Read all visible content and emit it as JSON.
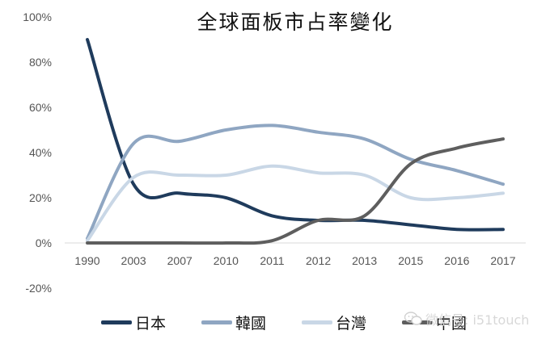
{
  "chart_data": {
    "type": "line",
    "title": "全球面板市占率變化",
    "xlabel": "",
    "ylabel": "",
    "categories": [
      "1990",
      "2003",
      "2007",
      "2010",
      "2011",
      "2012",
      "2013",
      "2015",
      "2016",
      "2017"
    ],
    "y_ticks": [
      "100%",
      "80%",
      "60%",
      "40%",
      "20%",
      "0%",
      "-20%"
    ],
    "ylim": [
      -20,
      100
    ],
    "grid": false,
    "legend_position": "bottom",
    "smooth": true,
    "series": [
      {
        "name": "日本",
        "color": "#1f3b5c",
        "values": [
          90,
          26,
          22,
          20,
          12,
          10,
          10,
          8,
          6,
          6
        ]
      },
      {
        "name": "韓國",
        "color": "#8fa6c2",
        "values": [
          2,
          44,
          45,
          50,
          52,
          49,
          46,
          37,
          32,
          26
        ]
      },
      {
        "name": "台灣",
        "color": "#c9d7e6",
        "values": [
          1,
          29,
          30,
          30,
          34,
          31,
          30,
          20,
          20,
          22
        ]
      },
      {
        "name": "中國",
        "color": "#5e5e5e",
        "values": [
          0,
          0,
          0,
          0,
          1,
          10,
          12,
          35,
          42,
          46
        ]
      }
    ]
  },
  "watermark": {
    "text": "微信号: i51touch",
    "icon": "wechat-icon"
  }
}
